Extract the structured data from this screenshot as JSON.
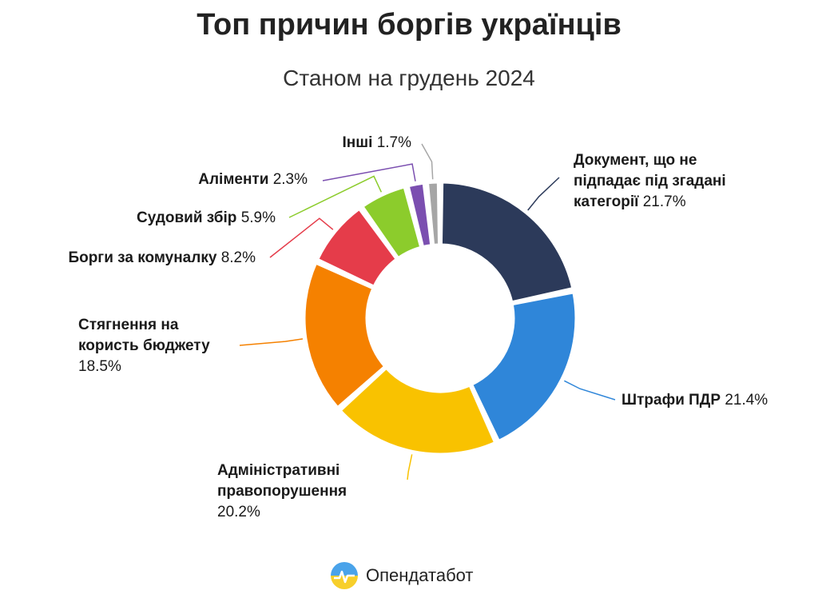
{
  "chart_data": {
    "type": "pie",
    "title": "Топ причин боргів українців",
    "subtitle": "Станом на грудень 2024",
    "unit": "%",
    "slices": [
      {
        "name": "Документ, що не підпадає під згадані категорії",
        "value": 21.7,
        "label": "21.7%",
        "color": "#2c3a5a"
      },
      {
        "name": "Штрафи ПДР",
        "value": 21.4,
        "label": "21.4%",
        "color": "#2f86d9"
      },
      {
        "name": "Адміністративні правопорушення",
        "value": 20.2,
        "label": "20.2%",
        "color": "#f9c200"
      },
      {
        "name": "Стягнення на користь бюджету",
        "value": 18.5,
        "label": "18.5%",
        "color": "#f58100"
      },
      {
        "name": "Борги за комуналку",
        "value": 8.2,
        "label": "8.2%",
        "color": "#e53c4a"
      },
      {
        "name": "Судовий збір",
        "value": 5.9,
        "label": "5.9%",
        "color": "#8ccc2c"
      },
      {
        "name": "Аліменти",
        "value": 2.3,
        "label": "2.3%",
        "color": "#7b4fb0"
      },
      {
        "name": "Інші",
        "value": 1.7,
        "label": "1.7%",
        "color": "#a6a6a6"
      }
    ]
  },
  "brand": {
    "name": "Опендатабот"
  }
}
